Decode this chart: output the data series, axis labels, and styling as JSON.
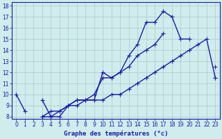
{
  "title": "Graphe des températures (°c)",
  "x_hours": [
    0,
    1,
    2,
    3,
    4,
    5,
    6,
    7,
    8,
    9,
    10,
    11,
    12,
    13,
    14,
    15,
    16,
    17,
    18,
    19,
    20,
    21,
    22,
    23
  ],
  "line1": [
    10.0,
    8.5,
    null,
    8.0,
    8.0,
    8.5,
    9.0,
    9.5,
    9.5,
    10.0,
    11.5,
    11.5,
    12.0,
    13.5,
    14.5,
    16.5,
    16.5,
    17.5,
    17.0,
    15.0,
    15.0,
    null,
    null,
    12.5
  ],
  "line2": [
    null,
    null,
    null,
    9.5,
    8.0,
    8.0,
    9.0,
    9.0,
    9.5,
    9.5,
    12.0,
    11.5,
    12.0,
    12.5,
    13.5,
    14.0,
    14.5,
    15.5,
    null,
    null,
    null,
    null,
    null,
    11.5
  ],
  "line3": [
    null,
    null,
    null,
    8.0,
    8.5,
    8.5,
    9.0,
    9.5,
    9.5,
    9.5,
    9.5,
    10.0,
    10.0,
    10.5,
    11.0,
    11.5,
    12.0,
    12.5,
    13.0,
    13.5,
    14.0,
    14.5,
    15.0,
    11.5
  ],
  "line_color": "#1a1aaa",
  "bg_color": "#d0ecec",
  "grid_color": "#aacaca",
  "ylim": [
    8,
    18
  ],
  "xlim_min": -0.5,
  "xlim_max": 23.5,
  "yticks": [
    8,
    9,
    10,
    11,
    12,
    13,
    14,
    15,
    16,
    17,
    18
  ],
  "xticks": [
    0,
    1,
    2,
    3,
    4,
    5,
    6,
    7,
    8,
    9,
    10,
    11,
    12,
    13,
    14,
    15,
    16,
    17,
    18,
    19,
    20,
    21,
    22,
    23
  ],
  "xlabel_fontsize": 6.5,
  "tick_fontsize": 5.5,
  "linewidth": 1.0,
  "markersize": 2.2
}
